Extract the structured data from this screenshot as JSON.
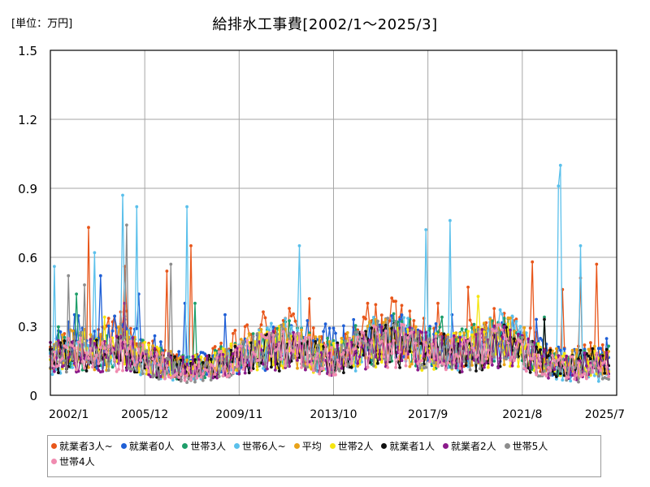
{
  "unit_label": "[単位：万円]",
  "chart_data": {
    "type": "line",
    "title": "給排水工事費[2002/1～2025/3]",
    "xlabel": "",
    "ylabel": "",
    "ylim": [
      0,
      1.5
    ],
    "yticks": [
      "0",
      "0.3",
      "0.6",
      "0.9",
      "1.2",
      "1.5"
    ],
    "xlim": [
      "2002/1",
      "2025/7"
    ],
    "xticks": [
      "2002/1",
      "2005/12",
      "2009/11",
      "2013/10",
      "2017/9",
      "2021/8",
      "2025/7"
    ],
    "grid": true,
    "legend_position": "bottom",
    "x_start": "2002/1",
    "x_end": "2025/3",
    "series": [
      {
        "name": "就業者3人~",
        "color": "#e8561a",
        "peaks": [
          [
            "2003/8",
            0.73
          ],
          [
            "2005/2",
            0.56
          ],
          [
            "2006/11",
            0.54
          ],
          [
            "2007/11",
            0.65
          ],
          [
            "2012/10",
            0.42
          ],
          [
            "2015/3",
            0.4
          ],
          [
            "2018/2",
            0.4
          ],
          [
            "2019/5",
            0.47
          ],
          [
            "2022/1",
            0.58
          ],
          [
            "2023/4",
            0.46
          ],
          [
            "2024/1",
            0.51
          ],
          [
            "2024/9",
            0.57
          ]
        ],
        "values": [
          0.15,
          0.18,
          0.22,
          0.25,
          0.2,
          0.24,
          0.3,
          0.22,
          0.19,
          0.16,
          0.14,
          0.12,
          0.12,
          0.13,
          0.15,
          0.18,
          0.21,
          0.24,
          0.27,
          0.29,
          0.28,
          0.25,
          0.21,
          0.17,
          0.17,
          0.2,
          0.24,
          0.28,
          0.29,
          0.31,
          0.28,
          0.24,
          0.22,
          0.21,
          0.21,
          0.22,
          0.25,
          0.3,
          0.31,
          0.29,
          0.24,
          0.19,
          0.16,
          0.15,
          0.15,
          0.16,
          0.16,
          0.17
        ]
      },
      {
        "name": "就業者0人",
        "color": "#1f5fd6",
        "peaks": [
          [
            "2003/1",
            0.35
          ],
          [
            "2004/2",
            0.52
          ],
          [
            "2005/9",
            0.44
          ],
          [
            "2007/8",
            0.4
          ],
          [
            "2009/4",
            0.35
          ],
          [
            "2016/7",
            0.33
          ],
          [
            "2018/9",
            0.35
          ],
          [
            "2022/3",
            0.33
          ]
        ],
        "values": [
          0.24,
          0.22,
          0.26,
          0.22,
          0.2,
          0.25,
          0.23,
          0.22,
          0.18,
          0.18,
          0.15,
          0.14,
          0.13,
          0.13,
          0.14,
          0.15,
          0.17,
          0.18,
          0.19,
          0.21,
          0.22,
          0.23,
          0.23,
          0.22,
          0.2,
          0.22,
          0.24,
          0.22,
          0.24,
          0.25,
          0.24,
          0.22,
          0.22,
          0.23,
          0.2,
          0.2,
          0.22,
          0.22,
          0.23,
          0.24,
          0.2,
          0.18,
          0.16,
          0.14,
          0.14,
          0.15,
          0.17,
          0.18
        ]
      },
      {
        "name": "世帯3人",
        "color": "#1e9e6a",
        "peaks": [
          [
            "2003/2",
            0.44
          ],
          [
            "2008/1",
            0.4
          ],
          [
            "2018/4",
            0.34
          ],
          [
            "2022/7",
            0.34
          ]
        ],
        "values": [
          0.19,
          0.22,
          0.2,
          0.19,
          0.18,
          0.2,
          0.21,
          0.19,
          0.16,
          0.15,
          0.13,
          0.12,
          0.12,
          0.12,
          0.14,
          0.16,
          0.18,
          0.2,
          0.22,
          0.24,
          0.23,
          0.22,
          0.2,
          0.17,
          0.18,
          0.2,
          0.22,
          0.24,
          0.24,
          0.25,
          0.24,
          0.22,
          0.2,
          0.21,
          0.2,
          0.2,
          0.22,
          0.24,
          0.25,
          0.24,
          0.2,
          0.17,
          0.15,
          0.13,
          0.13,
          0.14,
          0.14,
          0.15
        ]
      },
      {
        "name": "世帯6人~",
        "color": "#5bc0eb",
        "peaks": [
          [
            "2002/3",
            0.56
          ],
          [
            "2003/11",
            0.62
          ],
          [
            "2005/1",
            0.87
          ],
          [
            "2005/8",
            0.82
          ],
          [
            "2007/9",
            0.82
          ],
          [
            "2012/5",
            0.65
          ],
          [
            "2017/8",
            0.72
          ],
          [
            "2018/8",
            0.76
          ],
          [
            "2023/3",
            1.0
          ],
          [
            "2023/2",
            0.91
          ],
          [
            "2024/1",
            0.65
          ]
        ],
        "values": [
          0.14,
          0.16,
          0.2,
          0.22,
          0.16,
          0.2,
          0.26,
          0.17,
          0.15,
          0.12,
          0.11,
          0.1,
          0.1,
          0.11,
          0.13,
          0.15,
          0.16,
          0.19,
          0.21,
          0.24,
          0.23,
          0.2,
          0.17,
          0.13,
          0.14,
          0.16,
          0.2,
          0.24,
          0.25,
          0.26,
          0.25,
          0.21,
          0.19,
          0.19,
          0.18,
          0.19,
          0.22,
          0.25,
          0.27,
          0.26,
          0.2,
          0.16,
          0.13,
          0.11,
          0.1,
          0.11,
          0.1,
          0.11
        ]
      },
      {
        "name": "平均",
        "color": "#e8a21a",
        "peaks": [],
        "values": [
          0.18,
          0.19,
          0.2,
          0.2,
          0.19,
          0.2,
          0.21,
          0.2,
          0.17,
          0.16,
          0.14,
          0.13,
          0.13,
          0.13,
          0.14,
          0.16,
          0.18,
          0.19,
          0.21,
          0.22,
          0.22,
          0.21,
          0.19,
          0.17,
          0.17,
          0.19,
          0.21,
          0.23,
          0.23,
          0.24,
          0.23,
          0.21,
          0.2,
          0.2,
          0.2,
          0.2,
          0.21,
          0.23,
          0.24,
          0.23,
          0.2,
          0.17,
          0.15,
          0.14,
          0.14,
          0.14,
          0.15,
          0.15
        ]
      },
      {
        "name": "世帯2人",
        "color": "#f5e50f",
        "peaks": [
          [
            "2004/4",
            0.34
          ],
          [
            "2019/10",
            0.43
          ]
        ],
        "values": [
          0.17,
          0.18,
          0.19,
          0.19,
          0.18,
          0.19,
          0.2,
          0.19,
          0.16,
          0.15,
          0.13,
          0.12,
          0.12,
          0.12,
          0.13,
          0.15,
          0.17,
          0.18,
          0.2,
          0.21,
          0.21,
          0.2,
          0.18,
          0.16,
          0.16,
          0.18,
          0.2,
          0.22,
          0.22,
          0.23,
          0.22,
          0.2,
          0.19,
          0.19,
          0.19,
          0.19,
          0.2,
          0.22,
          0.23,
          0.22,
          0.19,
          0.16,
          0.14,
          0.13,
          0.13,
          0.13,
          0.14,
          0.14
        ]
      },
      {
        "name": "就業者1人",
        "color": "#111111",
        "peaks": [
          [
            "2022/7",
            0.33
          ]
        ],
        "values": [
          0.17,
          0.17,
          0.17,
          0.18,
          0.17,
          0.18,
          0.18,
          0.17,
          0.15,
          0.14,
          0.13,
          0.12,
          0.12,
          0.12,
          0.13,
          0.14,
          0.16,
          0.17,
          0.18,
          0.19,
          0.19,
          0.18,
          0.17,
          0.16,
          0.16,
          0.17,
          0.19,
          0.21,
          0.21,
          0.22,
          0.21,
          0.2,
          0.19,
          0.19,
          0.18,
          0.18,
          0.19,
          0.21,
          0.22,
          0.21,
          0.18,
          0.16,
          0.14,
          0.13,
          0.13,
          0.14,
          0.14,
          0.14
        ]
      },
      {
        "name": "就業者2人",
        "color": "#8b1a8b",
        "peaks": [
          [
            "2005/2",
            0.4
          ]
        ],
        "values": [
          0.16,
          0.17,
          0.18,
          0.19,
          0.17,
          0.18,
          0.19,
          0.18,
          0.15,
          0.14,
          0.13,
          0.12,
          0.12,
          0.12,
          0.13,
          0.15,
          0.16,
          0.18,
          0.19,
          0.2,
          0.2,
          0.19,
          0.17,
          0.15,
          0.15,
          0.17,
          0.19,
          0.21,
          0.21,
          0.22,
          0.21,
          0.2,
          0.19,
          0.19,
          0.18,
          0.18,
          0.2,
          0.21,
          0.22,
          0.21,
          0.18,
          0.15,
          0.13,
          0.12,
          0.12,
          0.13,
          0.13,
          0.13
        ]
      },
      {
        "name": "世帯5人",
        "color": "#8c8c8c",
        "peaks": [
          [
            "2002/10",
            0.52
          ],
          [
            "2003/6",
            0.48
          ],
          [
            "2005/3",
            0.74
          ],
          [
            "2007/1",
            0.57
          ]
        ],
        "values": [
          0.15,
          0.18,
          0.19,
          0.2,
          0.16,
          0.19,
          0.22,
          0.18,
          0.15,
          0.13,
          0.11,
          0.1,
          0.1,
          0.11,
          0.12,
          0.14,
          0.16,
          0.18,
          0.2,
          0.22,
          0.21,
          0.19,
          0.17,
          0.14,
          0.14,
          0.17,
          0.2,
          0.22,
          0.23,
          0.24,
          0.22,
          0.2,
          0.18,
          0.18,
          0.17,
          0.18,
          0.2,
          0.23,
          0.24,
          0.23,
          0.19,
          0.15,
          0.12,
          0.11,
          0.1,
          0.11,
          0.12,
          0.12
        ]
      },
      {
        "name": "世帯4人",
        "color": "#f08bb0",
        "peaks": [],
        "values": [
          0.16,
          0.17,
          0.18,
          0.18,
          0.17,
          0.18,
          0.19,
          0.18,
          0.15,
          0.14,
          0.12,
          0.11,
          0.11,
          0.12,
          0.13,
          0.14,
          0.16,
          0.17,
          0.19,
          0.2,
          0.2,
          0.19,
          0.17,
          0.15,
          0.15,
          0.17,
          0.19,
          0.21,
          0.21,
          0.22,
          0.21,
          0.19,
          0.18,
          0.18,
          0.18,
          0.18,
          0.19,
          0.21,
          0.22,
          0.21,
          0.18,
          0.15,
          0.13,
          0.12,
          0.12,
          0.13,
          0.13,
          0.13
        ]
      }
    ]
  }
}
